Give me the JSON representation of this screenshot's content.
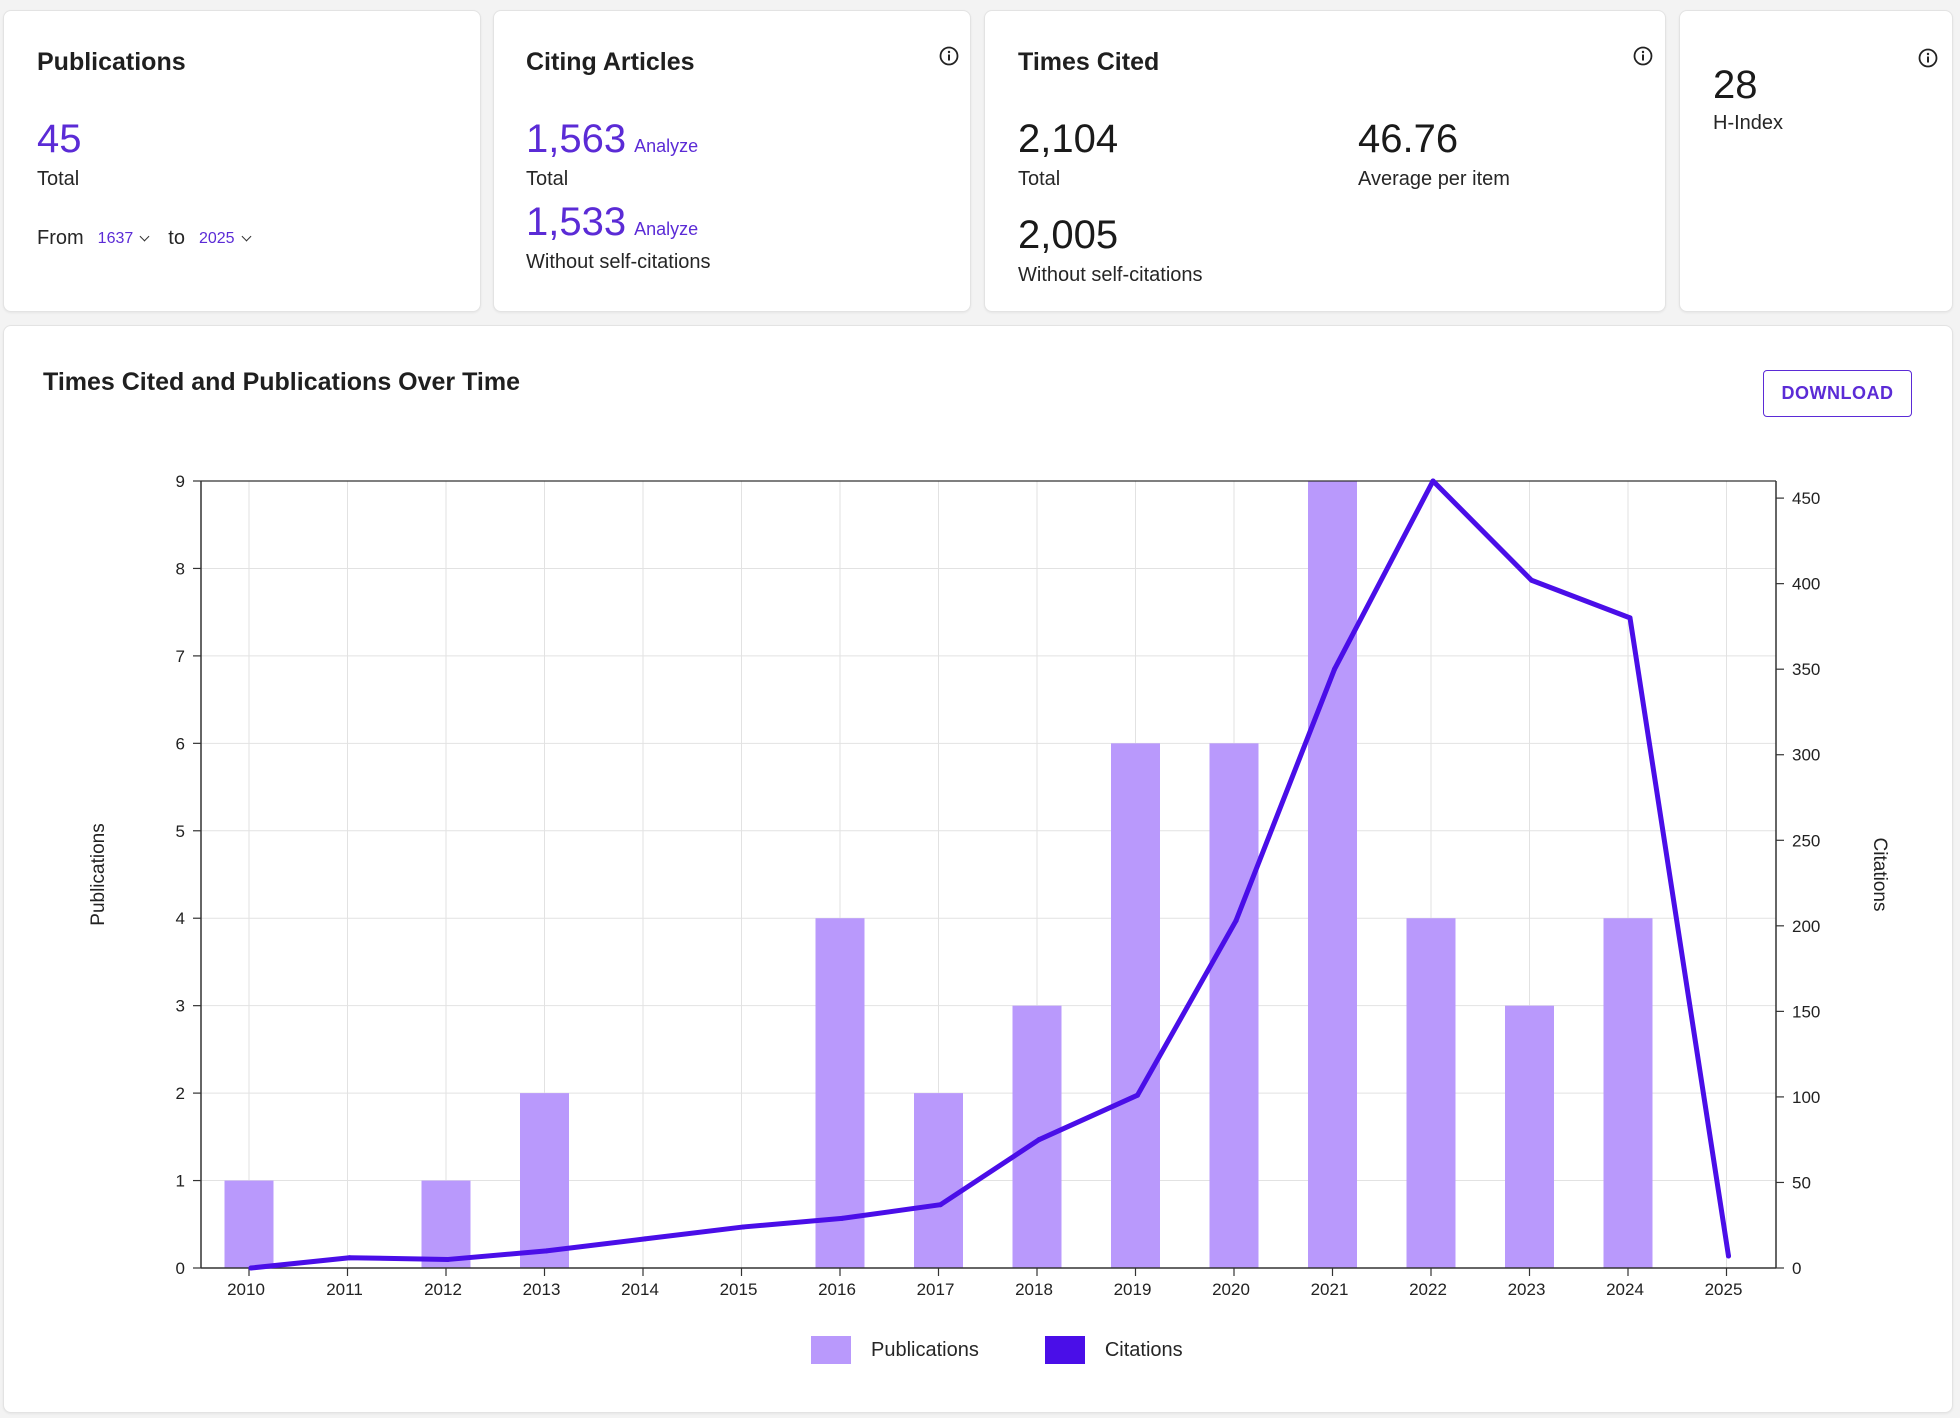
{
  "publications_card": {
    "title": "Publications",
    "total_value": "45",
    "total_label": "Total",
    "from_label": "From",
    "from_value": "1637",
    "to_label": "to",
    "to_value": "2025"
  },
  "citing_card": {
    "title": "Citing Articles",
    "total_value": "1,563",
    "total_label": "Total",
    "analyze_label": "Analyze",
    "without_value": "1,533",
    "without_label": "Without self-citations",
    "info_icon": "info-icon"
  },
  "times_cited_card": {
    "title": "Times Cited",
    "total_value": "2,104",
    "total_label": "Total",
    "average_value": "46.76",
    "average_label": "Average per item",
    "without_value": "2,005",
    "without_label": "Without self-citations",
    "info_icon": "info-icon"
  },
  "hindex_card": {
    "value": "28",
    "label": "H-Index",
    "info_icon": "info-icon"
  },
  "chart_panel": {
    "title": "Times Cited and Publications Over Time",
    "download_label": "DOWNLOAD",
    "legend_publications": "Publications",
    "legend_citations": "Citations"
  },
  "colors": {
    "accent": "#5b2bd6",
    "bar": "#b999fc",
    "line": "#4a0ee8"
  },
  "chart_data": {
    "type": "bar",
    "categories": [
      "2010",
      "2011",
      "2012",
      "2013",
      "2014",
      "2015",
      "2016",
      "2017",
      "2018",
      "2019",
      "2020",
      "2021",
      "2022",
      "2023",
      "2024",
      "2025"
    ],
    "series": [
      {
        "name": "Publications",
        "type": "bar",
        "axis": "left",
        "values": [
          1,
          0,
          1,
          2,
          0,
          0,
          4,
          2,
          3,
          6,
          6,
          9,
          4,
          3,
          4,
          0
        ]
      },
      {
        "name": "Citations",
        "type": "line",
        "axis": "right",
        "values": [
          0,
          6,
          5,
          10,
          17,
          24,
          29,
          37,
          75,
          101,
          203,
          350,
          460,
          402,
          380,
          7
        ]
      }
    ],
    "ylabel": "Publications",
    "y2label": "Citations",
    "ylim": [
      0,
      9
    ],
    "y2lim": [
      0,
      460
    ],
    "yticks": [
      0,
      1,
      2,
      3,
      4,
      5,
      6,
      7,
      8,
      9
    ],
    "y2ticks": [
      0,
      50,
      100,
      150,
      200,
      250,
      300,
      350,
      400,
      450
    ],
    "grid": true,
    "legend_position": "bottom"
  }
}
